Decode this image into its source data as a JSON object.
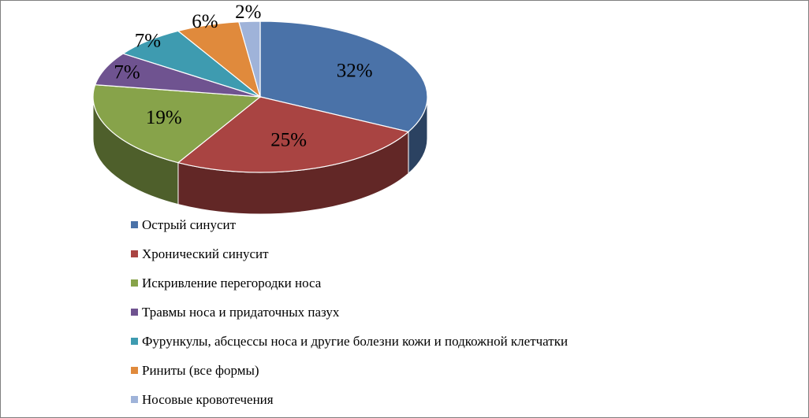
{
  "chart_data": {
    "type": "pie",
    "title": "",
    "legend_position": "bottom",
    "categories": [
      "Острый синусит",
      "Хронический синусит",
      "Искривление перегородки носа",
      "Травмы носа и придаточных пазух",
      "Фурункулы,  абсцессы носа и другие  болезни кожи и подкожной клетчатки",
      "Риниты (все формы)",
      "Носовые кровотечения"
    ],
    "values": [
      32,
      25,
      19,
      7,
      7,
      6,
      2
    ],
    "labels": [
      "32%",
      "25%",
      "19%",
      "7%",
      "7%",
      "6%",
      "2%"
    ],
    "colors": [
      "#4a72a8",
      "#a94442",
      "#87a34a",
      "#6f5390",
      "#3e9bb0",
      "#e08a3c",
      "#9fb3d9"
    ]
  }
}
